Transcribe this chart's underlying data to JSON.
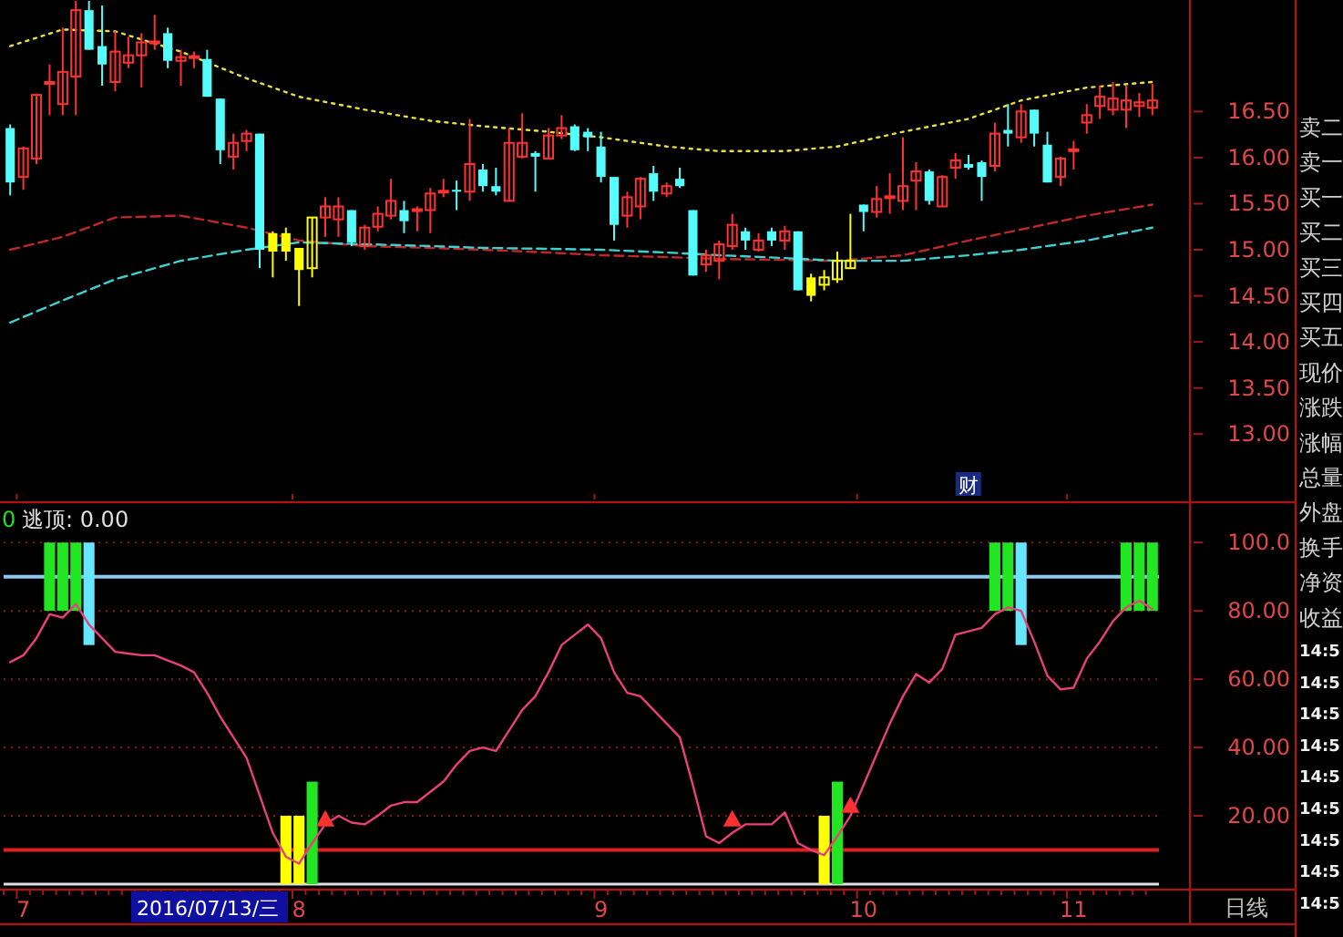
{
  "chart_data": [
    {
      "type": "candlestick",
      "tick_labels": "y",
      "ylim": [
        12.29,
        17.71
      ],
      "yticks": [
        {
          "value": 13,
          "label": "13.00"
        },
        {
          "value": 13.5,
          "label": "13.50"
        },
        {
          "value": 14,
          "label": "14.00"
        },
        {
          "value": 14.5,
          "label": "14.50"
        },
        {
          "value": 15,
          "label": "15.00"
        },
        {
          "value": 15.5,
          "label": "15.50"
        },
        {
          "value": 16,
          "label": "16.00"
        },
        {
          "value": 16.5,
          "label": "16.50"
        }
      ],
      "categories": [
        null,
        "7",
        null,
        null,
        null,
        null,
        null,
        null,
        null,
        null,
        null,
        null,
        null,
        null,
        null,
        null,
        null,
        null,
        null,
        null,
        null,
        null,
        "8",
        null,
        null,
        null,
        null,
        null,
        null,
        null,
        null,
        null,
        null,
        null,
        null,
        null,
        null,
        null,
        null,
        null,
        null,
        null,
        null,
        null,
        null,
        "9",
        null,
        null,
        null,
        null,
        null,
        null,
        null,
        null,
        null,
        null,
        null,
        null,
        null,
        null,
        null,
        null,
        null,
        null,
        null,
        "10",
        null,
        null,
        null,
        null,
        null,
        null,
        null,
        null,
        null,
        null,
        null,
        null,
        null,
        null,
        null,
        "11",
        null,
        null,
        null,
        null,
        null,
        null
      ],
      "ohlc": [
        [
          16.32,
          16.36,
          15.59,
          15.73
        ],
        [
          15.79,
          16.12,
          15.65,
          16.1
        ],
        [
          15.99,
          16.68,
          15.93,
          16.68
        ],
        [
          16.8,
          17.01,
          16.46,
          16.82
        ],
        [
          16.58,
          17.41,
          16.46,
          16.93
        ],
        [
          16.88,
          17.7,
          16.46,
          17.6
        ],
        [
          17.6,
          17.7,
          17.17,
          17.17
        ],
        [
          17.21,
          17.65,
          16.78,
          17.01
        ],
        [
          16.82,
          17.37,
          16.72,
          17.15
        ],
        [
          17.03,
          17.31,
          16.97,
          17.11
        ],
        [
          17.11,
          17.35,
          16.76,
          17.25
        ],
        [
          17.24,
          17.55,
          17.17,
          17.26
        ],
        [
          17.35,
          17.41,
          16.97,
          17.05
        ],
        [
          17.05,
          17.17,
          16.78,
          17.09
        ],
        [
          17.08,
          17.15,
          16.97,
          17.1
        ],
        [
          17.07,
          17.17,
          16.66,
          16.66
        ],
        [
          16.64,
          16.64,
          15.93,
          16.08
        ],
        [
          16.01,
          16.26,
          15.87,
          16.16
        ],
        [
          16.18,
          16.3,
          16.07,
          16.26
        ],
        [
          16.26,
          16.26,
          14.8,
          15.0
        ],
        [
          15.18,
          15.2,
          14.7,
          14.98
        ],
        [
          15.18,
          15.24,
          14.88,
          14.98
        ],
        [
          15.02,
          15.02,
          14.39,
          14.78
        ],
        [
          14.8,
          15.35,
          14.7,
          15.35
        ],
        [
          15.35,
          15.57,
          15.14,
          15.47
        ],
        [
          15.33,
          15.57,
          15.14,
          15.47
        ],
        [
          15.43,
          15.43,
          15.04,
          15.08
        ],
        [
          15.04,
          15.27,
          15.0,
          15.24
        ],
        [
          15.25,
          15.47,
          15.2,
          15.39
        ],
        [
          15.37,
          15.77,
          15.33,
          15.53
        ],
        [
          15.43,
          15.53,
          15.18,
          15.31
        ],
        [
          15.42,
          15.47,
          15.2,
          15.44
        ],
        [
          15.43,
          15.67,
          15.18,
          15.61
        ],
        [
          15.62,
          15.77,
          15.57,
          15.64
        ],
        [
          15.65,
          15.75,
          15.43,
          15.63
        ],
        [
          15.63,
          16.42,
          15.53,
          15.93
        ],
        [
          15.87,
          15.93,
          15.63,
          15.69
        ],
        [
          15.69,
          15.89,
          15.59,
          15.63
        ],
        [
          15.53,
          16.32,
          15.53,
          16.16
        ],
        [
          16.01,
          16.48,
          15.99,
          16.16
        ],
        [
          16.05,
          16.07,
          15.63,
          16.01
        ],
        [
          15.99,
          16.32,
          15.99,
          16.24
        ],
        [
          16.24,
          16.46,
          16.2,
          16.32
        ],
        [
          16.34,
          16.36,
          16.07,
          16.08
        ],
        [
          16.28,
          16.32,
          16.07,
          16.22
        ],
        [
          16.12,
          16.28,
          15.73,
          15.79
        ],
        [
          15.79,
          15.79,
          15.1,
          15.27
        ],
        [
          15.37,
          15.63,
          15.24,
          15.57
        ],
        [
          15.47,
          15.79,
          15.33,
          15.77
        ],
        [
          15.83,
          15.91,
          15.53,
          15.63
        ],
        [
          15.61,
          15.73,
          15.57,
          15.69
        ],
        [
          15.77,
          15.89,
          15.67,
          15.69
        ],
        [
          15.43,
          15.43,
          14.72,
          14.72
        ],
        [
          14.84,
          15.0,
          14.76,
          14.94
        ],
        [
          14.88,
          15.1,
          14.68,
          15.06
        ],
        [
          15.04,
          15.39,
          15.0,
          15.27
        ],
        [
          15.2,
          15.24,
          15.0,
          15.1
        ],
        [
          15.0,
          15.18,
          14.98,
          15.1
        ],
        [
          15.2,
          15.24,
          15.04,
          15.1
        ],
        [
          15.1,
          15.26,
          15.0,
          15.2
        ],
        [
          15.2,
          15.2,
          14.56,
          14.56
        ],
        [
          14.7,
          14.74,
          14.44,
          14.5
        ],
        [
          14.62,
          14.78,
          14.56,
          14.7
        ],
        [
          14.68,
          14.98,
          14.64,
          14.88
        ],
        [
          14.8,
          15.39,
          14.8,
          14.88
        ],
        [
          15.49,
          15.49,
          15.2,
          15.41
        ],
        [
          15.41,
          15.69,
          15.35,
          15.55
        ],
        [
          15.56,
          15.83,
          15.39,
          15.58
        ],
        [
          15.53,
          16.22,
          15.43,
          15.69
        ],
        [
          15.75,
          15.95,
          15.43,
          15.85
        ],
        [
          15.85,
          15.87,
          15.49,
          15.53
        ],
        [
          15.47,
          15.81,
          15.47,
          15.79
        ],
        [
          15.89,
          16.05,
          15.77,
          15.97
        ],
        [
          15.93,
          16.03,
          15.87,
          15.89
        ],
        [
          15.95,
          15.97,
          15.53,
          15.79
        ],
        [
          15.91,
          16.38,
          15.85,
          16.26
        ],
        [
          16.3,
          16.58,
          16.12,
          16.26
        ],
        [
          16.22,
          16.58,
          16.16,
          16.5
        ],
        [
          16.52,
          16.52,
          16.12,
          16.26
        ],
        [
          16.14,
          16.28,
          15.73,
          15.73
        ],
        [
          15.79,
          16.01,
          15.69,
          15.99
        ],
        [
          16.07,
          16.18,
          15.87,
          16.09
        ],
        [
          16.38,
          16.58,
          16.26,
          16.46
        ],
        [
          16.56,
          16.78,
          16.42,
          16.66
        ],
        [
          16.52,
          16.82,
          16.46,
          16.64
        ],
        [
          16.52,
          16.78,
          16.32,
          16.62
        ],
        [
          16.56,
          16.7,
          16.44,
          16.6
        ],
        [
          16.54,
          16.8,
          16.46,
          16.62
        ]
      ],
      "colors": [
        "#54fcfc",
        "#ff3232",
        "#ff3232",
        "#ff3232",
        "#ff3232",
        "#ff3232",
        "#54fcfc",
        "#54fcfc",
        "#ff3232",
        "#ff3232",
        "#ff3232",
        "#ff3232",
        "#54fcfc",
        "#ff3232",
        "#ff3232",
        "#54fcfc",
        "#54fcfc",
        "#ff3232",
        "#ff3232",
        "#54fcfc",
        "#ffff00",
        "#ffff00",
        "#ffff00",
        "#ffff00",
        "#ff3232",
        "#ff3232",
        "#54fcfc",
        "#ff3232",
        "#ff3232",
        "#ff3232",
        "#54fcfc",
        "#ff3232",
        "#ff3232",
        "#ff3232",
        "#54fcfc",
        "#ff3232",
        "#54fcfc",
        "#54fcfc",
        "#ff3232",
        "#ff3232",
        "#54fcfc",
        "#ff3232",
        "#ff3232",
        "#54fcfc",
        "#54fcfc",
        "#54fcfc",
        "#54fcfc",
        "#ff3232",
        "#ff3232",
        "#54fcfc",
        "#ff3232",
        "#54fcfc",
        "#54fcfc",
        "#ff3232",
        "#ff3232",
        "#ff3232",
        "#54fcfc",
        "#ff3232",
        "#54fcfc",
        "#ff3232",
        "#54fcfc",
        "#ffff00",
        "#ffff00",
        "#ffff00",
        "#ffff00",
        "#54fcfc",
        "#ff3232",
        "#ff3232",
        "#ff3232",
        "#ff3232",
        "#54fcfc",
        "#ff3232",
        "#ff3232",
        "#54fcfc",
        "#54fcfc",
        "#ff3232",
        "#54fcfc",
        "#ff3232",
        "#54fcfc",
        "#54fcfc",
        "#ff3232",
        "#ff3232",
        "#ff3232",
        "#ff3232",
        "#ff3232",
        "#ff3232",
        "#ff3232",
        "#ff3232"
      ],
      "series": [
        {
          "type": "line",
          "color": "#e8e040",
          "line_style": "dotted",
          "values": [
            17.21,
            null,
            null,
            null,
            17.39,
            null,
            null,
            null,
            17.37,
            null,
            null,
            null,
            null,
            17.15,
            null,
            null,
            null,
            null,
            16.86,
            null,
            null,
            null,
            16.66,
            null,
            null,
            null,
            null,
            16.52,
            null,
            null,
            null,
            null,
            16.4,
            null,
            null,
            null,
            16.34,
            null,
            null,
            null,
            null,
            16.28,
            null,
            null,
            null,
            16.22,
            null,
            null,
            null,
            null,
            16.12,
            null,
            null,
            null,
            16.07,
            null,
            null,
            null,
            null,
            16.07,
            null,
            null,
            null,
            16.12,
            null,
            null,
            null,
            null,
            16.28,
            null,
            null,
            null,
            null,
            16.42,
            null,
            null,
            null,
            16.62,
            null,
            null,
            null,
            null,
            16.76,
            null,
            null,
            null,
            null,
            16.82
          ]
        },
        {
          "type": "line",
          "color": "#c02828",
          "line_style": "dashed",
          "values": [
            15.0,
            null,
            null,
            null,
            15.14,
            null,
            null,
            null,
            15.35,
            null,
            null,
            null,
            null,
            15.37,
            null,
            null,
            null,
            null,
            15.24,
            null,
            null,
            null,
            15.1,
            null,
            null,
            null,
            null,
            15.04,
            null,
            null,
            null,
            null,
            15.02,
            null,
            null,
            null,
            15.0,
            null,
            null,
            null,
            null,
            14.97,
            null,
            null,
            null,
            14.94,
            null,
            null,
            null,
            null,
            14.92,
            null,
            null,
            null,
            14.9,
            null,
            null,
            null,
            null,
            14.89,
            null,
            null,
            null,
            14.88,
            null,
            null,
            null,
            null,
            14.94,
            null,
            null,
            null,
            null,
            15.1,
            null,
            null,
            null,
            15.22,
            null,
            null,
            null,
            null,
            15.37,
            null,
            null,
            null,
            null,
            15.49
          ]
        },
        {
          "type": "line",
          "color": "#40d0d0",
          "line_style": "dashed",
          "values": [
            14.21,
            null,
            null,
            null,
            14.45,
            null,
            null,
            null,
            14.68,
            null,
            null,
            null,
            null,
            14.88,
            null,
            null,
            null,
            null,
            15.0,
            null,
            null,
            null,
            15.08,
            null,
            null,
            null,
            null,
            15.06,
            null,
            null,
            null,
            null,
            15.04,
            null,
            null,
            null,
            15.02,
            null,
            null,
            null,
            null,
            15.01,
            null,
            null,
            null,
            15.0,
            null,
            null,
            null,
            null,
            14.97,
            null,
            null,
            null,
            14.94,
            null,
            null,
            null,
            null,
            14.91,
            null,
            null,
            null,
            14.88,
            null,
            null,
            null,
            null,
            14.88,
            null,
            null,
            null,
            null,
            14.94,
            null,
            null,
            null,
            15.0,
            null,
            null,
            null,
            null,
            15.1,
            null,
            null,
            null,
            null,
            15.24
          ]
        }
      ],
      "annotations": [
        "财"
      ]
    },
    {
      "type": "line",
      "ylim": [
        0,
        111
      ],
      "grid": "y",
      "yticks": [
        {
          "value": 20,
          "label": "20.00"
        },
        {
          "value": 40,
          "label": "40.00"
        },
        {
          "value": 60,
          "label": "60.00"
        },
        {
          "value": 80,
          "label": "80.00"
        },
        {
          "value": 100,
          "label": "100.0"
        }
      ],
      "categories": [
        null,
        "7",
        null,
        null,
        null,
        null,
        null,
        null,
        null,
        null,
        null,
        null,
        null,
        null,
        null,
        null,
        null,
        null,
        null,
        null,
        null,
        null,
        "8",
        null,
        null,
        null,
        null,
        null,
        null,
        null,
        null,
        null,
        null,
        null,
        null,
        null,
        null,
        null,
        null,
        null,
        null,
        null,
        null,
        null,
        null,
        "9",
        null,
        null,
        null,
        null,
        null,
        null,
        null,
        null,
        null,
        null,
        null,
        null,
        null,
        null,
        null,
        null,
        null,
        null,
        null,
        "10",
        null,
        null,
        null,
        null,
        null,
        null,
        null,
        null,
        null,
        null,
        null,
        null,
        null,
        null,
        null,
        "11",
        null,
        null,
        null,
        null,
        null,
        null
      ],
      "ref_lines": [
        {
          "axis": "y",
          "value": 90,
          "color": "#8cc8f0"
        },
        {
          "axis": "y",
          "value": 10,
          "color": "#e02020"
        }
      ],
      "series": [
        {
          "type": "bar",
          "values": [
            null,
            null,
            null,
            20,
            20,
            20,
            30,
            null,
            null,
            null,
            null,
            null,
            null,
            null,
            null,
            null,
            null,
            null,
            null,
            null,
            null,
            20,
            20,
            30,
            null,
            null,
            null,
            null,
            null,
            null,
            null,
            null,
            null,
            null,
            null,
            null,
            null,
            null,
            null,
            null,
            null,
            null,
            null,
            null,
            null,
            null,
            null,
            null,
            null,
            null,
            null,
            null,
            null,
            null,
            null,
            null,
            null,
            null,
            null,
            null,
            null,
            null,
            20,
            30,
            null,
            null,
            null,
            null,
            null,
            null,
            null,
            null,
            null,
            null,
            null,
            20,
            20,
            30,
            null,
            null,
            null,
            null,
            null,
            null,
            null,
            20,
            20,
            20
          ],
          "base": [
            null,
            null,
            null,
            80,
            80,
            80,
            70,
            null,
            null,
            null,
            null,
            null,
            null,
            null,
            null,
            null,
            null,
            null,
            null,
            null,
            null,
            0,
            0,
            0,
            null,
            null,
            null,
            null,
            null,
            null,
            null,
            null,
            null,
            null,
            null,
            null,
            null,
            null,
            null,
            null,
            null,
            null,
            null,
            null,
            null,
            null,
            null,
            null,
            null,
            null,
            null,
            null,
            null,
            null,
            null,
            null,
            null,
            null,
            null,
            null,
            null,
            null,
            0,
            0,
            null,
            null,
            null,
            null,
            null,
            null,
            null,
            null,
            null,
            null,
            null,
            80,
            80,
            70,
            null,
            null,
            null,
            null,
            null,
            null,
            null,
            80,
            80,
            80
          ],
          "colors": [
            null,
            null,
            null,
            "#22e622",
            "#22e622",
            "#22e622",
            "#66e6ff",
            null,
            null,
            null,
            null,
            null,
            null,
            null,
            null,
            null,
            null,
            null,
            null,
            null,
            null,
            "#ffff00",
            "#ffff00",
            "#22e622",
            null,
            null,
            null,
            null,
            null,
            null,
            null,
            null,
            null,
            null,
            null,
            null,
            null,
            null,
            null,
            null,
            null,
            null,
            null,
            null,
            null,
            null,
            null,
            null,
            null,
            null,
            null,
            null,
            null,
            null,
            null,
            null,
            null,
            null,
            null,
            null,
            null,
            null,
            "#ffff00",
            "#22e622",
            null,
            null,
            null,
            null,
            null,
            null,
            null,
            null,
            null,
            null,
            null,
            "#22e622",
            "#22e622",
            "#66e6ff",
            null,
            null,
            null,
            null,
            null,
            null,
            null,
            "#22e622",
            "#22e622",
            "#22e622"
          ]
        },
        {
          "type": "line",
          "color": "#e8407a",
          "values": [
            65,
            67,
            72,
            79,
            78,
            82,
            76,
            72,
            68,
            67.5,
            67,
            67,
            65.5,
            64,
            62,
            56,
            49,
            43,
            37,
            26,
            15,
            8,
            6,
            12,
            17.5,
            20,
            18,
            17.5,
            20,
            23,
            24,
            24,
            27,
            30,
            35,
            39,
            40,
            39,
            45,
            51,
            55,
            62,
            70,
            73,
            76,
            72,
            62,
            56,
            55,
            51,
            47,
            43,
            29,
            14,
            12,
            15,
            17.5,
            17.5,
            17.5,
            21,
            12,
            10,
            8.5,
            14,
            20,
            29,
            38,
            47,
            55,
            61.5,
            59,
            63,
            73,
            74,
            75,
            79,
            81,
            80,
            71,
            61,
            57,
            57.5,
            66,
            71,
            77,
            81,
            83,
            80.5
          ]
        },
        {
          "type": "scatter",
          "color": "#ff3030",
          "marker": "triangle",
          "values": [
            null,
            null,
            null,
            null,
            null,
            null,
            null,
            null,
            null,
            null,
            null,
            null,
            null,
            null,
            null,
            null,
            null,
            null,
            null,
            null,
            null,
            null,
            null,
            null,
            19,
            null,
            null,
            null,
            null,
            null,
            null,
            null,
            null,
            null,
            null,
            null,
            null,
            null,
            null,
            null,
            null,
            null,
            null,
            null,
            null,
            null,
            null,
            null,
            null,
            null,
            null,
            null,
            null,
            null,
            null,
            19,
            null,
            null,
            null,
            null,
            null,
            null,
            null,
            null,
            23,
            null,
            null,
            null,
            null,
            null,
            null,
            null,
            null,
            null,
            null,
            null,
            null,
            null,
            null,
            null,
            null,
            null,
            null,
            null,
            null,
            null,
            null,
            null
          ]
        }
      ],
      "annotations": [
        "0",
        "逃顶: 0.00",
        "2016/07/13/三",
        "日线"
      ]
    },
    {
      "type": "other",
      "annotations": [
        "卖二",
        "卖一",
        "买一",
        "买二",
        "买三",
        "买四",
        "买五",
        "现价",
        "涨跌",
        "涨幅",
        "总量",
        "外盘",
        "换手",
        "净资",
        "收益",
        "14:5",
        "14:5",
        "14:5",
        "14:5",
        "14:5",
        "14:5",
        "14:5",
        "14:5",
        "14:5"
      ]
    }
  ]
}
